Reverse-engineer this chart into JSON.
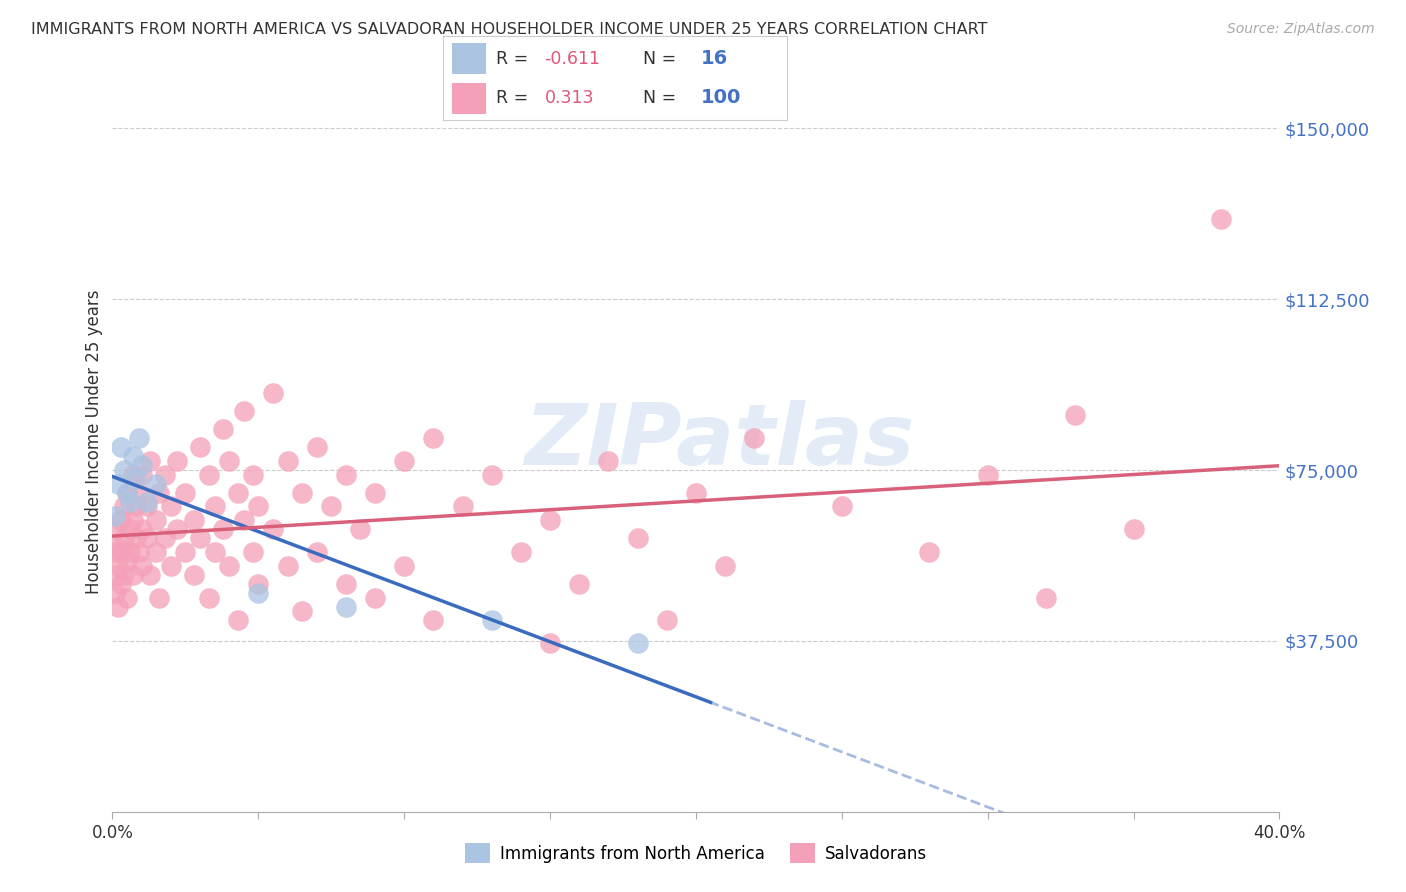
{
  "title": "IMMIGRANTS FROM NORTH AMERICA VS SALVADORAN HOUSEHOLDER INCOME UNDER 25 YEARS CORRELATION CHART",
  "source": "Source: ZipAtlas.com",
  "ylabel": "Householder Income Under 25 years",
  "ytick_labels": [
    "$37,500",
    "$75,000",
    "$112,500",
    "$150,000"
  ],
  "ytick_values": [
    37500,
    75000,
    112500,
    150000
  ],
  "ymin": 0,
  "ymax": 162500,
  "xmin": 0.0,
  "xmax": 0.4,
  "blue_color": "#aac4e2",
  "blue_line_color": "#3a6bbf",
  "pink_color": "#f4a0b8",
  "pink_line_color": "#d9607a",
  "watermark": "ZIPatlas",
  "blue_scatter": [
    [
      0.001,
      65000
    ],
    [
      0.002,
      72000
    ],
    [
      0.003,
      80000
    ],
    [
      0.004,
      75000
    ],
    [
      0.005,
      70000
    ],
    [
      0.006,
      68000
    ],
    [
      0.007,
      78000
    ],
    [
      0.008,
      73000
    ],
    [
      0.009,
      82000
    ],
    [
      0.01,
      76000
    ],
    [
      0.012,
      68000
    ],
    [
      0.015,
      72000
    ],
    [
      0.05,
      48000
    ],
    [
      0.08,
      45000
    ],
    [
      0.13,
      42000
    ],
    [
      0.18,
      37000
    ]
  ],
  "pink_scatter": [
    [
      0.001,
      52000
    ],
    [
      0.001,
      48000
    ],
    [
      0.001,
      57000
    ],
    [
      0.001,
      62000
    ],
    [
      0.002,
      45000
    ],
    [
      0.002,
      58000
    ],
    [
      0.002,
      54000
    ],
    [
      0.003,
      50000
    ],
    [
      0.003,
      64000
    ],
    [
      0.003,
      57000
    ],
    [
      0.004,
      52000
    ],
    [
      0.004,
      67000
    ],
    [
      0.004,
      60000
    ],
    [
      0.005,
      55000
    ],
    [
      0.005,
      70000
    ],
    [
      0.005,
      47000
    ],
    [
      0.006,
      62000
    ],
    [
      0.006,
      57000
    ],
    [
      0.007,
      74000
    ],
    [
      0.007,
      52000
    ],
    [
      0.007,
      64000
    ],
    [
      0.008,
      60000
    ],
    [
      0.008,
      67000
    ],
    [
      0.009,
      57000
    ],
    [
      0.009,
      70000
    ],
    [
      0.01,
      62000
    ],
    [
      0.01,
      74000
    ],
    [
      0.01,
      54000
    ],
    [
      0.012,
      67000
    ],
    [
      0.012,
      60000
    ],
    [
      0.013,
      77000
    ],
    [
      0.013,
      52000
    ],
    [
      0.015,
      64000
    ],
    [
      0.015,
      57000
    ],
    [
      0.016,
      70000
    ],
    [
      0.016,
      47000
    ],
    [
      0.018,
      74000
    ],
    [
      0.018,
      60000
    ],
    [
      0.02,
      67000
    ],
    [
      0.02,
      54000
    ],
    [
      0.022,
      62000
    ],
    [
      0.022,
      77000
    ],
    [
      0.025,
      57000
    ],
    [
      0.025,
      70000
    ],
    [
      0.028,
      64000
    ],
    [
      0.028,
      52000
    ],
    [
      0.03,
      80000
    ],
    [
      0.03,
      60000
    ],
    [
      0.033,
      74000
    ],
    [
      0.033,
      47000
    ],
    [
      0.035,
      67000
    ],
    [
      0.035,
      57000
    ],
    [
      0.038,
      84000
    ],
    [
      0.038,
      62000
    ],
    [
      0.04,
      77000
    ],
    [
      0.04,
      54000
    ],
    [
      0.043,
      70000
    ],
    [
      0.043,
      42000
    ],
    [
      0.045,
      64000
    ],
    [
      0.045,
      88000
    ],
    [
      0.048,
      57000
    ],
    [
      0.048,
      74000
    ],
    [
      0.05,
      67000
    ],
    [
      0.05,
      50000
    ],
    [
      0.055,
      92000
    ],
    [
      0.055,
      62000
    ],
    [
      0.06,
      77000
    ],
    [
      0.06,
      54000
    ],
    [
      0.065,
      70000
    ],
    [
      0.065,
      44000
    ],
    [
      0.07,
      80000
    ],
    [
      0.07,
      57000
    ],
    [
      0.075,
      67000
    ],
    [
      0.08,
      74000
    ],
    [
      0.08,
      50000
    ],
    [
      0.085,
      62000
    ],
    [
      0.09,
      70000
    ],
    [
      0.09,
      47000
    ],
    [
      0.1,
      77000
    ],
    [
      0.1,
      54000
    ],
    [
      0.11,
      82000
    ],
    [
      0.11,
      42000
    ],
    [
      0.12,
      67000
    ],
    [
      0.13,
      74000
    ],
    [
      0.14,
      57000
    ],
    [
      0.15,
      64000
    ],
    [
      0.15,
      37000
    ],
    [
      0.16,
      50000
    ],
    [
      0.17,
      77000
    ],
    [
      0.18,
      60000
    ],
    [
      0.19,
      42000
    ],
    [
      0.2,
      70000
    ],
    [
      0.21,
      54000
    ],
    [
      0.22,
      82000
    ],
    [
      0.25,
      67000
    ],
    [
      0.28,
      57000
    ],
    [
      0.3,
      74000
    ],
    [
      0.32,
      47000
    ],
    [
      0.33,
      87000
    ],
    [
      0.35,
      62000
    ],
    [
      0.38,
      130000
    ]
  ]
}
